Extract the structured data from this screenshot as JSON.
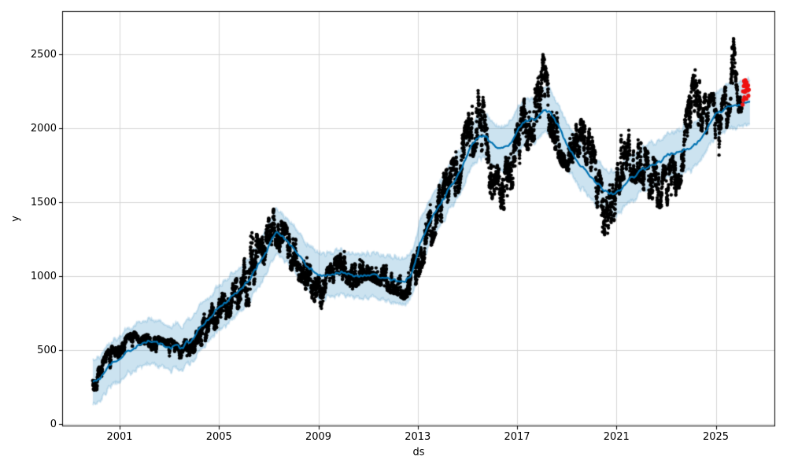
{
  "chart_data": {
    "type": "scatter",
    "title": "",
    "xlabel": "ds",
    "ylabel": "y",
    "legend": null,
    "grid": true,
    "x_axis": {
      "tick_values": [
        2001,
        2005,
        2009,
        2013,
        2017,
        2021,
        2025
      ],
      "tick_labels": [
        "2001",
        "2005",
        "2009",
        "2013",
        "2017",
        "2021",
        "2025"
      ],
      "range": [
        1998.67,
        2027.39
      ]
    },
    "y_axis": {
      "tick_values": [
        0,
        500,
        1000,
        1500,
        2000,
        2500
      ],
      "tick_labels": [
        "0",
        "500",
        "1000",
        "1500",
        "2000",
        "2500"
      ],
      "range": [
        -16,
        2793
      ]
    },
    "colors": {
      "observed": "#000000",
      "forecast_line": "#0072B2",
      "uncertainty_band": "#0072B2",
      "band_opacity": 0.2,
      "flagged": "#ee1111",
      "grid": "#d6d6d6",
      "spine": "#000000"
    },
    "series": [
      {
        "name": "observed-history",
        "type": "scatter",
        "color": "#000000",
        "sampling": "daily points, rendered from keypoints [year, center, half_spread]",
        "keypoints": [
          [
            1999.92,
            285,
            55
          ],
          [
            2000.1,
            300,
            60
          ],
          [
            2000.3,
            345,
            70
          ],
          [
            2000.5,
            420,
            70
          ],
          [
            2000.7,
            465,
            55
          ],
          [
            2000.9,
            450,
            55
          ],
          [
            2001.1,
            495,
            60
          ],
          [
            2001.35,
            545,
            55
          ],
          [
            2001.6,
            560,
            55
          ],
          [
            2001.85,
            520,
            60
          ],
          [
            2002.1,
            545,
            55
          ],
          [
            2002.35,
            560,
            50
          ],
          [
            2002.6,
            520,
            60
          ],
          [
            2002.85,
            505,
            55
          ],
          [
            2003.1,
            515,
            55
          ],
          [
            2003.35,
            480,
            50
          ],
          [
            2003.6,
            505,
            55
          ],
          [
            2003.85,
            540,
            65
          ],
          [
            2004.1,
            575,
            70
          ],
          [
            2004.35,
            635,
            85
          ],
          [
            2004.6,
            700,
            95
          ],
          [
            2004.85,
            745,
            90
          ],
          [
            2005.1,
            780,
            90
          ],
          [
            2005.35,
            815,
            90
          ],
          [
            2005.6,
            850,
            95
          ],
          [
            2005.9,
            920,
            105
          ],
          [
            2006.15,
            1000,
            180
          ],
          [
            2006.35,
            1070,
            240
          ],
          [
            2006.6,
            1090,
            150
          ],
          [
            2006.85,
            1150,
            130
          ],
          [
            2007.05,
            1280,
            130
          ],
          [
            2007.25,
            1340,
            110
          ],
          [
            2007.5,
            1265,
            105
          ],
          [
            2007.75,
            1220,
            110
          ],
          [
            2008.0,
            1140,
            120
          ],
          [
            2008.3,
            1075,
            105
          ],
          [
            2008.6,
            1000,
            110
          ],
          [
            2008.9,
            900,
            115
          ],
          [
            2009.1,
            830,
            120
          ],
          [
            2009.35,
            950,
            90
          ],
          [
            2009.6,
            1010,
            85
          ],
          [
            2009.9,
            1070,
            90
          ],
          [
            2010.15,
            1060,
            95
          ],
          [
            2010.4,
            1000,
            85
          ],
          [
            2010.7,
            1055,
            90
          ],
          [
            2011.0,
            1090,
            95
          ],
          [
            2011.3,
            1050,
            85
          ],
          [
            2011.6,
            1030,
            90
          ],
          [
            2011.9,
            975,
            80
          ],
          [
            2012.2,
            955,
            75
          ],
          [
            2012.45,
            915,
            65
          ],
          [
            2012.7,
            955,
            75
          ],
          [
            2012.95,
            1090,
            120
          ],
          [
            2013.2,
            1230,
            140
          ],
          [
            2013.45,
            1330,
            150
          ],
          [
            2013.7,
            1420,
            130
          ],
          [
            2013.95,
            1520,
            140
          ],
          [
            2014.25,
            1570,
            150
          ],
          [
            2014.55,
            1690,
            140
          ],
          [
            2014.85,
            1800,
            155
          ],
          [
            2015.1,
            1970,
            190
          ],
          [
            2015.35,
            2090,
            210
          ],
          [
            2015.6,
            2030,
            190
          ],
          [
            2015.85,
            1790,
            170
          ],
          [
            2016.1,
            1610,
            150
          ],
          [
            2016.35,
            1545,
            145
          ],
          [
            2016.65,
            1700,
            145
          ],
          [
            2016.95,
            1830,
            155
          ],
          [
            2017.25,
            1990,
            175
          ],
          [
            2017.5,
            2070,
            180
          ],
          [
            2017.75,
            2140,
            180
          ],
          [
            2018.02,
            2290,
            200
          ],
          [
            2018.25,
            2180,
            165
          ],
          [
            2018.5,
            2030,
            150
          ],
          [
            2018.8,
            1915,
            150
          ],
          [
            2019.1,
            1855,
            140
          ],
          [
            2019.4,
            1870,
            140
          ],
          [
            2019.7,
            1930,
            140
          ],
          [
            2019.9,
            1890,
            170
          ],
          [
            2020.05,
            1720,
            170
          ],
          [
            2020.25,
            1550,
            200
          ],
          [
            2020.45,
            1400,
            190
          ],
          [
            2020.7,
            1430,
            160
          ],
          [
            2020.95,
            1560,
            145
          ],
          [
            2021.2,
            1810,
            160
          ],
          [
            2021.45,
            1850,
            150
          ],
          [
            2021.7,
            1780,
            140
          ],
          [
            2021.95,
            1785,
            130
          ],
          [
            2022.2,
            1700,
            140
          ],
          [
            2022.45,
            1650,
            140
          ],
          [
            2022.7,
            1620,
            140
          ],
          [
            2022.95,
            1600,
            130
          ],
          [
            2023.2,
            1630,
            145
          ],
          [
            2023.45,
            1710,
            140
          ],
          [
            2023.7,
            1850,
            145
          ],
          [
            2023.95,
            2060,
            160
          ],
          [
            2024.15,
            2230,
            170
          ],
          [
            2024.4,
            2140,
            140
          ],
          [
            2024.65,
            2060,
            140
          ],
          [
            2024.9,
            2090,
            135
          ],
          [
            2025.1,
            1880,
            175
          ],
          [
            2025.3,
            2060,
            155
          ],
          [
            2025.5,
            2210,
            140
          ],
          [
            2025.67,
            2380,
            170
          ],
          [
            2025.78,
            2520,
            145
          ],
          [
            2025.92,
            2230,
            110
          ],
          [
            2026.05,
            2200,
            80
          ]
        ]
      },
      {
        "name": "forecast-yhat",
        "type": "line",
        "color": "#0072B2",
        "width": 2.2,
        "points": [
          [
            1999.92,
            290
          ],
          [
            2000.2,
            308
          ],
          [
            2000.45,
            365
          ],
          [
            2000.7,
            425
          ],
          [
            2000.9,
            440
          ],
          [
            2001.1,
            455
          ],
          [
            2001.35,
            495
          ],
          [
            2001.6,
            520
          ],
          [
            2001.9,
            528
          ],
          [
            2002.2,
            548
          ],
          [
            2002.5,
            540
          ],
          [
            2002.8,
            522
          ],
          [
            2003.1,
            512
          ],
          [
            2003.35,
            532
          ],
          [
            2003.55,
            522
          ],
          [
            2003.7,
            568
          ],
          [
            2003.85,
            558
          ],
          [
            2004.05,
            615
          ],
          [
            2004.3,
            650
          ],
          [
            2004.55,
            695
          ],
          [
            2004.8,
            755
          ],
          [
            2005.05,
            795
          ],
          [
            2005.3,
            830
          ],
          [
            2005.65,
            875
          ],
          [
            2005.95,
            925
          ],
          [
            2006.3,
            1005
          ],
          [
            2006.6,
            1085
          ],
          [
            2006.9,
            1155
          ],
          [
            2007.15,
            1235
          ],
          [
            2007.35,
            1295
          ],
          [
            2007.55,
            1275
          ],
          [
            2007.8,
            1232
          ],
          [
            2008.1,
            1170
          ],
          [
            2008.4,
            1100
          ],
          [
            2008.7,
            1040
          ],
          [
            2009.0,
            1000
          ],
          [
            2009.3,
            985
          ],
          [
            2009.55,
            1000
          ],
          [
            2009.8,
            1020
          ],
          [
            2010.1,
            1000
          ],
          [
            2010.4,
            995
          ],
          [
            2010.7,
            1010
          ],
          [
            2011.0,
            1015
          ],
          [
            2011.3,
            995
          ],
          [
            2011.6,
            990
          ],
          [
            2011.9,
            975
          ],
          [
            2012.2,
            965
          ],
          [
            2012.45,
            958
          ],
          [
            2012.7,
            990
          ],
          [
            2012.9,
            1085
          ],
          [
            2013.1,
            1225
          ],
          [
            2013.4,
            1345
          ],
          [
            2013.7,
            1435
          ],
          [
            2013.95,
            1505
          ],
          [
            2014.25,
            1585
          ],
          [
            2014.55,
            1650
          ],
          [
            2014.85,
            1755
          ],
          [
            2015.15,
            1870
          ],
          [
            2015.45,
            1940
          ],
          [
            2015.75,
            1948
          ],
          [
            2016.05,
            1898
          ],
          [
            2016.35,
            1858
          ],
          [
            2016.65,
            1875
          ],
          [
            2016.95,
            1950
          ],
          [
            2017.25,
            2035
          ],
          [
            2017.5,
            2042
          ],
          [
            2017.75,
            2078
          ],
          [
            2018.05,
            2130
          ],
          [
            2018.3,
            2112
          ],
          [
            2018.6,
            2025
          ],
          [
            2018.9,
            1932
          ],
          [
            2019.2,
            1845
          ],
          [
            2019.5,
            1762
          ],
          [
            2019.8,
            1705
          ],
          [
            2020.1,
            1650
          ],
          [
            2020.4,
            1610
          ],
          [
            2020.7,
            1580
          ],
          [
            2020.95,
            1568
          ],
          [
            2021.2,
            1600
          ],
          [
            2021.5,
            1655
          ],
          [
            2021.8,
            1695
          ],
          [
            2022.1,
            1725
          ],
          [
            2022.4,
            1752
          ],
          [
            2022.7,
            1778
          ],
          [
            2023.0,
            1800
          ],
          [
            2023.3,
            1818
          ],
          [
            2023.6,
            1835
          ],
          [
            2023.9,
            1858
          ],
          [
            2024.2,
            1905
          ],
          [
            2024.5,
            1962
          ],
          [
            2024.8,
            2035
          ],
          [
            2025.05,
            2095
          ],
          [
            2025.3,
            2140
          ],
          [
            2025.5,
            2152
          ],
          [
            2025.68,
            2146
          ],
          [
            2025.85,
            2165
          ],
          [
            2026.05,
            2172
          ],
          [
            2026.25,
            2180
          ],
          [
            2026.38,
            2185
          ]
        ]
      },
      {
        "name": "uncertainty-interval",
        "type": "band",
        "color": "#0072B2",
        "opacity": 0.2,
        "half_width": 150,
        "follows": "forecast-yhat",
        "x_start": 1999.92,
        "x_end": 2026.38
      },
      {
        "name": "flagged-recent-points",
        "type": "scatter",
        "color": "#ee1111",
        "points": [
          [
            2026.08,
            2160
          ],
          [
            2026.1,
            2250
          ],
          [
            2026.11,
            2190
          ],
          [
            2026.13,
            2285
          ],
          [
            2026.14,
            2320
          ],
          [
            2026.15,
            2210
          ],
          [
            2026.16,
            2310
          ],
          [
            2026.17,
            2245
          ],
          [
            2026.19,
            2325
          ],
          [
            2026.2,
            2255
          ],
          [
            2026.21,
            2290
          ],
          [
            2026.23,
            2200
          ],
          [
            2026.24,
            2310
          ],
          [
            2026.26,
            2270
          ],
          [
            2026.28,
            2255
          ],
          [
            2026.3,
            2290
          ],
          [
            2026.31,
            2220
          ],
          [
            2026.33,
            2260
          ]
        ]
      }
    ]
  }
}
